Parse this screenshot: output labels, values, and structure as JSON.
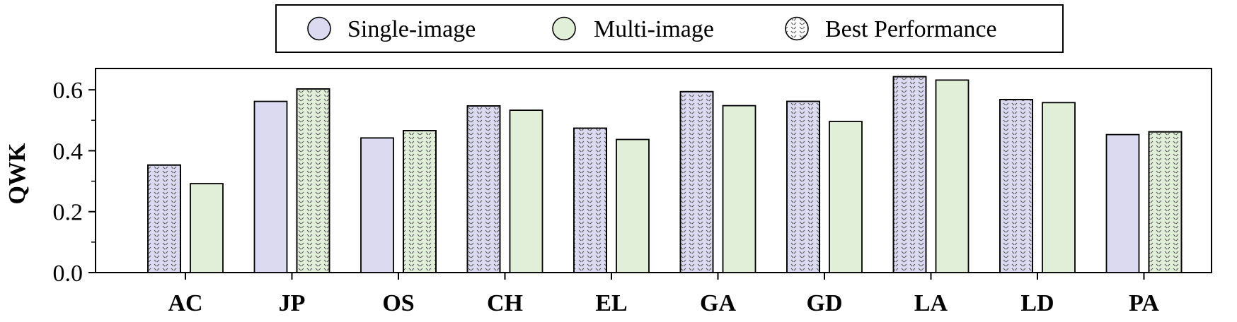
{
  "chart_data": {
    "type": "bar",
    "title": "",
    "xlabel": "",
    "ylabel": "QWK",
    "ylim": [
      0,
      0.67
    ],
    "yticks": [
      "0.0",
      "0.2",
      "0.4",
      "0.6"
    ],
    "ytick_values": [
      0.0,
      0.2,
      0.4,
      0.6
    ],
    "categories": [
      "AC",
      "JP",
      "OS",
      "CH",
      "EL",
      "GA",
      "GD",
      "LA",
      "LD",
      "PA"
    ],
    "series": [
      {
        "name": "Single-image",
        "color": "#dcdaf0",
        "values": [
          0.353,
          0.562,
          0.442,
          0.547,
          0.474,
          0.594,
          0.562,
          0.643,
          0.568,
          0.453
        ],
        "best": [
          true,
          false,
          false,
          true,
          true,
          true,
          true,
          true,
          true,
          false
        ]
      },
      {
        "name": "Multi-image",
        "color": "#e1efd9",
        "values": [
          0.292,
          0.603,
          0.466,
          0.533,
          0.437,
          0.548,
          0.496,
          0.632,
          0.558,
          0.462
        ],
        "best": [
          false,
          true,
          true,
          false,
          false,
          false,
          false,
          false,
          false,
          true
        ]
      }
    ],
    "legend": {
      "position": "top-center",
      "best_label": "Best Performance"
    },
    "grid": false
  }
}
